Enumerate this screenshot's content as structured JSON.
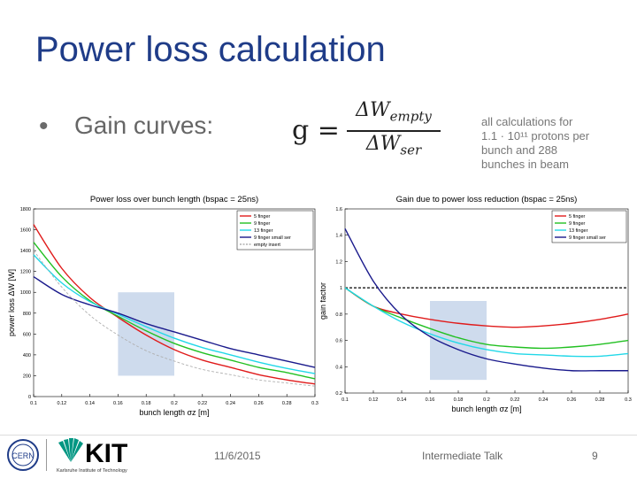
{
  "slide": {
    "title": "Power loss calculation",
    "bullet_symbol": "•",
    "bullet_text": "Gain curves:",
    "formula": {
      "lhs": "g",
      "eq": "=",
      "num_prefix": "ΔW",
      "num_sub": "empty",
      "den_prefix": "ΔW",
      "den_sub": "ser"
    },
    "note": [
      "all calculations for",
      "1.1 · 10¹¹ protons per",
      "bunch and 288",
      "bunches in beam"
    ],
    "footer": {
      "date": "11/6/2015",
      "talk": "Intermediate Talk",
      "page": "9"
    },
    "logos": {
      "cern": "CERN",
      "kit": "KIT",
      "kit_sub": "Karlsruhe Institute of Technology"
    }
  },
  "colors": {
    "title": "#1f3c88",
    "red": "#e01b1b",
    "green": "#22c022",
    "cyan": "#22d8e8",
    "navy": "#1a1a8c",
    "grey": "#b0b0b0",
    "shade": "#c6d5ea",
    "kit_green": "#009682"
  },
  "chart_data": [
    {
      "type": "line",
      "title": "Power loss over bunch length (bspac = 25ns)",
      "xlabel": "bunch length σz [m]",
      "ylabel": "power loss ΔW [W]",
      "xlim": [
        0.1,
        0.3
      ],
      "ylim": [
        0,
        1800
      ],
      "xticks": [
        "0.1",
        "0.12",
        "0.14",
        "0.16",
        "0.18",
        "0.2",
        "0.22",
        "0.24",
        "0.26",
        "0.28",
        "0.3"
      ],
      "yticks": [
        "0",
        "200",
        "400",
        "600",
        "800",
        "1000",
        "1200",
        "1400",
        "1600",
        "1800"
      ],
      "legend_position": "top-right",
      "shaded_region": {
        "x": [
          0.16,
          0.2
        ],
        "y": [
          200,
          1000
        ]
      },
      "x": [
        0.1,
        0.12,
        0.14,
        0.16,
        0.18,
        0.2,
        0.22,
        0.24,
        0.26,
        0.28,
        0.3
      ],
      "series": [
        {
          "name": "5 finger",
          "color": "#e01b1b",
          "values": [
            1650,
            1230,
            950,
            760,
            590,
            450,
            350,
            280,
            210,
            160,
            120
          ]
        },
        {
          "name": "9 finger",
          "color": "#22c022",
          "values": [
            1480,
            1150,
            920,
            770,
            630,
            510,
            420,
            350,
            280,
            230,
            170
          ]
        },
        {
          "name": "13 finger",
          "color": "#22d8e8",
          "values": [
            1360,
            1090,
            910,
            790,
            670,
            560,
            470,
            400,
            330,
            270,
            220
          ]
        },
        {
          "name": "9 finger small ser",
          "color": "#1a1a8c",
          "values": [
            1150,
            980,
            880,
            800,
            700,
            620,
            540,
            460,
            400,
            340,
            280
          ]
        },
        {
          "name": "empty insert",
          "color": "#b0b0b0",
          "dashed": true,
          "values": [
            1400,
            1050,
            780,
            590,
            440,
            340,
            260,
            210,
            160,
            130,
            100
          ]
        }
      ]
    },
    {
      "type": "line",
      "title": "Gain due to power loss reduction (bspac = 25ns)",
      "xlabel": "bunch length σz [m]",
      "ylabel": "gain factor",
      "xlim": [
        0.1,
        0.3
      ],
      "ylim": [
        0.2,
        1.6
      ],
      "xticks": [
        "0.1",
        "0.12",
        "0.14",
        "0.16",
        "0.18",
        "0.2",
        "0.22",
        "0.24",
        "0.26",
        "0.28",
        "0.3"
      ],
      "yticks": [
        "0.2",
        "0.4",
        "0.6",
        "0.8",
        "1",
        "1.2",
        "1.4",
        "1.6"
      ],
      "legend_position": "top-right",
      "reference_line": 1.0,
      "shaded_region": {
        "x": [
          0.16,
          0.2
        ],
        "y": [
          0.3,
          0.9
        ]
      },
      "x": [
        0.1,
        0.12,
        0.14,
        0.16,
        0.18,
        0.2,
        0.22,
        0.24,
        0.26,
        0.28,
        0.3
      ],
      "series": [
        {
          "name": "5 finger",
          "color": "#e01b1b",
          "values": [
            1.0,
            0.86,
            0.8,
            0.76,
            0.73,
            0.71,
            0.7,
            0.71,
            0.73,
            0.76,
            0.8
          ]
        },
        {
          "name": "9 finger",
          "color": "#22c022",
          "values": [
            1.0,
            0.86,
            0.77,
            0.69,
            0.62,
            0.57,
            0.55,
            0.54,
            0.55,
            0.57,
            0.6
          ]
        },
        {
          "name": "13 finger",
          "color": "#22d8e8",
          "values": [
            1.0,
            0.86,
            0.74,
            0.65,
            0.58,
            0.53,
            0.5,
            0.49,
            0.48,
            0.48,
            0.5
          ]
        },
        {
          "name": "9 finger small ser",
          "color": "#1a1a8c",
          "values": [
            1.45,
            1.05,
            0.79,
            0.63,
            0.53,
            0.46,
            0.42,
            0.39,
            0.37,
            0.37,
            0.37
          ]
        }
      ]
    }
  ]
}
